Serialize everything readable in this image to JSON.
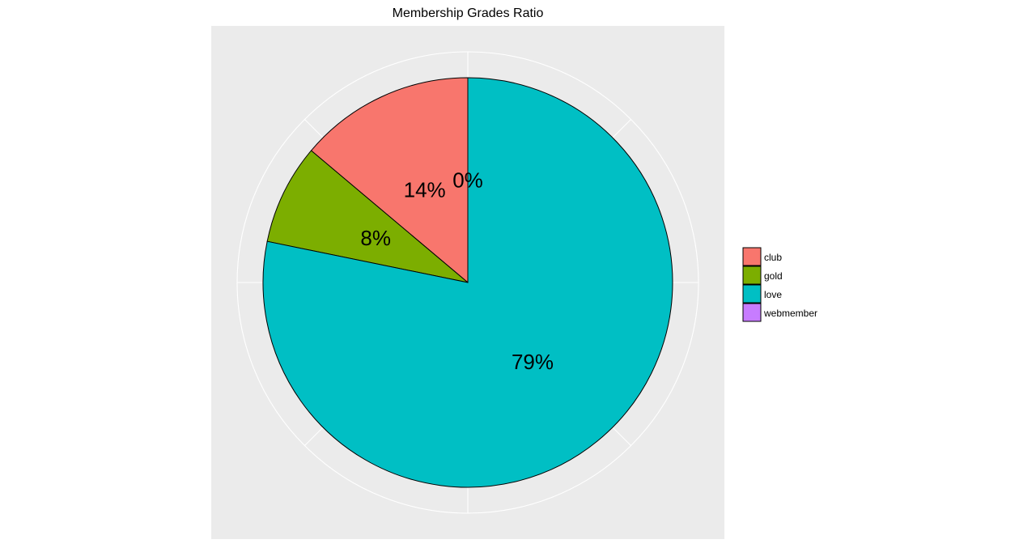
{
  "chart_data": {
    "type": "pie",
    "title": "Membership Grades Ratio",
    "categories": [
      "club",
      "gold",
      "love",
      "webmember"
    ],
    "values": [
      14,
      8,
      79,
      0
    ],
    "labels": [
      "14%",
      "8%",
      "79%",
      "0%"
    ],
    "colors": [
      "#F8766D",
      "#7CAE00",
      "#00BFC4",
      "#C77CFF"
    ],
    "legend_position": "right",
    "panel_background": "#EBEBEB",
    "grid": true
  }
}
